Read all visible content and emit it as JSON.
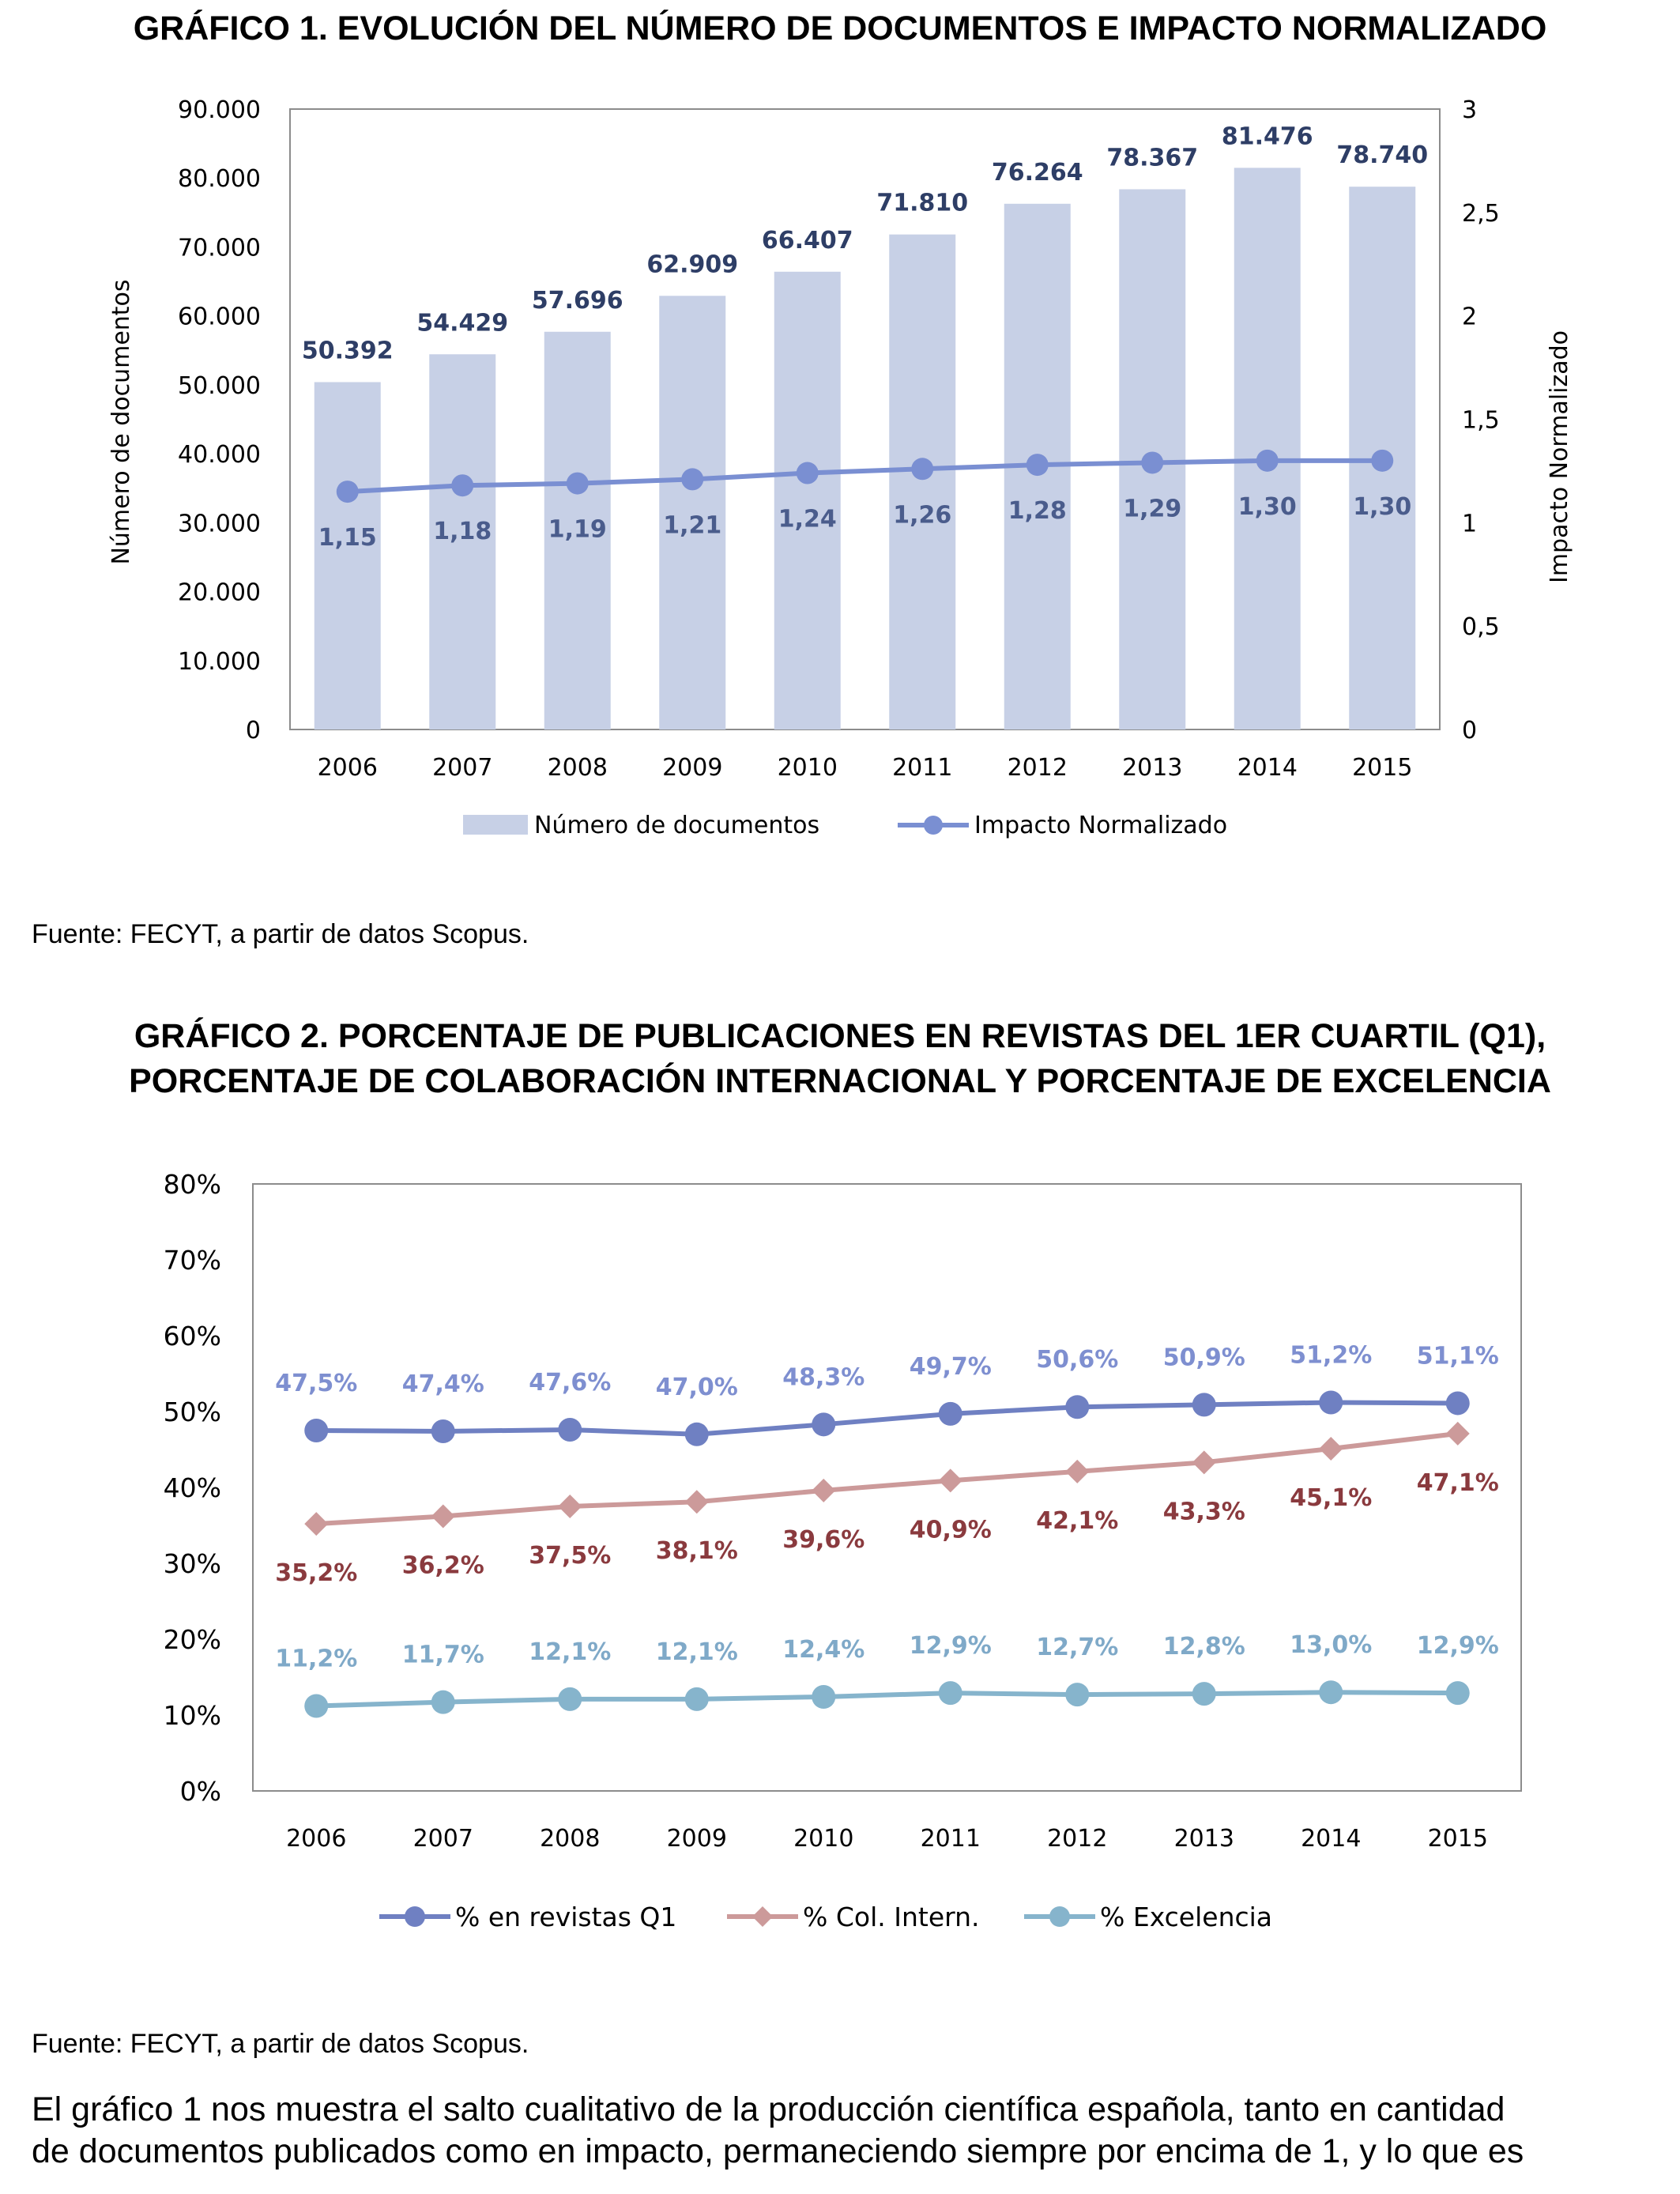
{
  "chart1": {
    "title": "GRÁFICO 1. EVOLUCIÓN DEL NÚMERO DE DOCUMENTOS E IMPACTO NORMALIZADO",
    "source": "Fuente: FECYT, a partir de datos Scopus."
  },
  "chart2": {
    "title_lines": [
      "GRÁFICO 2. PORCENTAJE DE PUBLICACIONES EN REVISTAS DEL 1ER CUARTIL (Q1),",
      "PORCENTAJE DE COLABORACIÓN INTERNACIONAL Y PORCENTAJE DE EXCELENCIA"
    ],
    "source": "Fuente: FECYT, a partir de datos Scopus."
  },
  "body_text": [
    "El gráfico 1 nos muestra el salto cualitativo de la producción científica española, tanto en cantidad",
    "de documentos publicados como en impacto, permaneciendo siempre por encima de 1, y lo que es"
  ],
  "chart_data": [
    {
      "type": "bar",
      "title": "GRÁFICO 1. EVOLUCIÓN DEL NÚMERO DE DOCUMENTOS E IMPACTO NORMALIZADO",
      "categories": [
        "2006",
        "2007",
        "2008",
        "2009",
        "2010",
        "2011",
        "2012",
        "2013",
        "2014",
        "2015"
      ],
      "ylabel": "Número de documentos",
      "y2label": "Impacto Normalizado",
      "ylim": [
        0,
        90000
      ],
      "y2lim": [
        0,
        3
      ],
      "yticks": [
        "0",
        "10.000",
        "20.000",
        "30.000",
        "40.000",
        "50.000",
        "60.000",
        "70.000",
        "80.000",
        "90.000"
      ],
      "y2ticks": [
        "0",
        "0,5",
        "1",
        "1,5",
        "2",
        "2,5",
        "3"
      ],
      "grid": false,
      "legend": "bottom",
      "series": [
        {
          "name": "Número de documentos",
          "type": "bar",
          "axis": "left",
          "color": "#C7D0E6",
          "values": [
            50392,
            54429,
            57696,
            62909,
            66407,
            71810,
            76264,
            78367,
            81476,
            78740
          ],
          "labels": [
            "50.392",
            "54.429",
            "57.696",
            "62.909",
            "66.407",
            "71.810",
            "76.264",
            "78.367",
            "81.476",
            "78.740"
          ],
          "label_color": "#2E3E66"
        },
        {
          "name": "Impacto Normalizado",
          "type": "line",
          "axis": "right",
          "color": "#7A8FD2",
          "values": [
            1.15,
            1.18,
            1.19,
            1.21,
            1.24,
            1.26,
            1.28,
            1.29,
            1.3,
            1.3
          ],
          "labels": [
            "1,15",
            "1,18",
            "1,19",
            "1,21",
            "1,24",
            "1,26",
            "1,28",
            "1,29",
            "1,30",
            "1,30"
          ],
          "label_color": "#4A5C8C"
        }
      ]
    },
    {
      "type": "line",
      "title": "GRÁFICO 2. PORCENTAJE DE PUBLICACIONES EN REVISTAS DEL 1ER CUARTIL (Q1), PORCENTAJE DE COLABORACIÓN INTERNACIONAL Y PORCENTAJE DE EXCELENCIA",
      "categories": [
        "2006",
        "2007",
        "2008",
        "2009",
        "2010",
        "2011",
        "2012",
        "2013",
        "2014",
        "2015"
      ],
      "ylim": [
        0,
        80
      ],
      "yticks": [
        "0%",
        "10%",
        "20%",
        "30%",
        "40%",
        "50%",
        "60%",
        "70%",
        "80%"
      ],
      "grid": false,
      "legend": "bottom",
      "series": [
        {
          "name": "% en revistas Q1",
          "marker": "circle",
          "color": "#6F80C2",
          "label_color": "#7E8FD0",
          "label_pos": "above",
          "values": [
            47.5,
            47.4,
            47.6,
            47.0,
            48.3,
            49.7,
            50.6,
            50.9,
            51.2,
            51.1
          ],
          "labels": [
            "47,5%",
            "47,4%",
            "47,6%",
            "47,0%",
            "48,3%",
            "49,7%",
            "50,6%",
            "50,9%",
            "51,2%",
            "51,1%"
          ]
        },
        {
          "name": "% Col. Intern.",
          "marker": "diamond",
          "color": "#CC9A9A",
          "label_color": "#8A3A3E",
          "label_pos": "below",
          "values": [
            35.2,
            36.2,
            37.5,
            38.1,
            39.6,
            40.9,
            42.1,
            43.3,
            45.1,
            47.1
          ],
          "labels": [
            "35,2%",
            "36,2%",
            "37,5%",
            "38,1%",
            "39,6%",
            "40,9%",
            "42,1%",
            "43,3%",
            "45,1%",
            "47,1%"
          ]
        },
        {
          "name": "% Excelencia",
          "marker": "circle",
          "color": "#86B4CC",
          "label_color": "#7FA9C8",
          "label_pos": "above",
          "values": [
            11.2,
            11.7,
            12.1,
            12.1,
            12.4,
            12.9,
            12.7,
            12.8,
            13.0,
            12.9
          ],
          "labels": [
            "11,2%",
            "11,7%",
            "12,1%",
            "12,1%",
            "12,4%",
            "12,9%",
            "12,7%",
            "12,8%",
            "13,0%",
            "12,9%"
          ]
        }
      ]
    }
  ]
}
